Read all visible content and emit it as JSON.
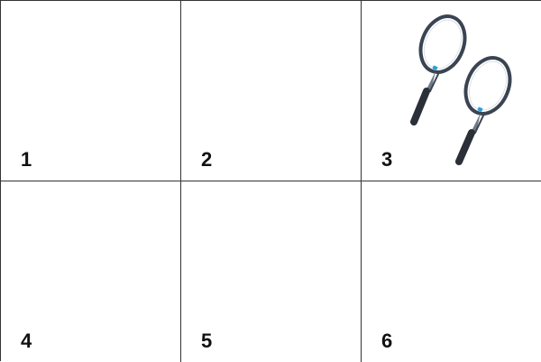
{
  "cells": [
    {
      "number": "1",
      "content": "empty"
    },
    {
      "number": "2",
      "content": "empty"
    },
    {
      "number": "3",
      "content": "tennis-rackets",
      "item_count": 2
    },
    {
      "number": "4",
      "content": "empty"
    },
    {
      "number": "5",
      "content": "empty"
    },
    {
      "number": "6",
      "content": "empty"
    }
  ],
  "colors": {
    "grid_line": "#333333",
    "racket_frame": "#3a4452",
    "racket_accent": "#2a9fd6",
    "grip": "#2b2f38"
  },
  "icons": [
    "tennis-racket-icon"
  ]
}
